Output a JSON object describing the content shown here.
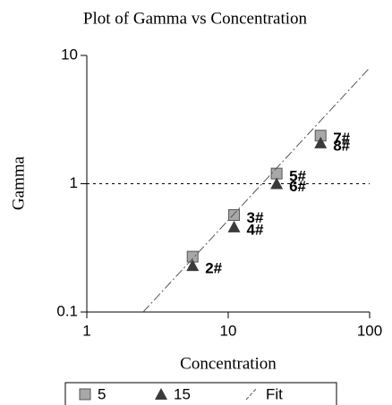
{
  "chart_data": {
    "type": "scatter",
    "title": "Plot of Gamma vs Concentration",
    "x_label": "Concentration",
    "y_label": "Gamma",
    "xlog": true,
    "ylog": true,
    "xlim": [
      1,
      100
    ],
    "ylim": [
      0.1,
      10
    ],
    "xticks": [
      1,
      10,
      100
    ],
    "yticks": [
      0.1,
      1,
      10
    ],
    "hline": 1,
    "series": [
      {
        "name": "5",
        "marker": "square",
        "color": "#a8a8a8",
        "x": [
          5.6,
          11,
          22,
          45
        ],
        "values": [
          0.27,
          0.57,
          1.2,
          2.37
        ],
        "point_labels": [
          null,
          "3#",
          "5#",
          "7#"
        ]
      },
      {
        "name": "15",
        "marker": "triangle",
        "color": "#3a3a3a",
        "x": [
          5.6,
          11,
          22,
          45
        ],
        "values": [
          0.23,
          0.46,
          1.0,
          2.08
        ],
        "point_labels": [
          "2#",
          "4#",
          "6#",
          "8#"
        ]
      },
      {
        "name": "Fit",
        "marker": "line",
        "color": "#555555",
        "x": [
          2.5,
          100
        ],
        "values": [
          0.1,
          8
        ]
      }
    ]
  }
}
